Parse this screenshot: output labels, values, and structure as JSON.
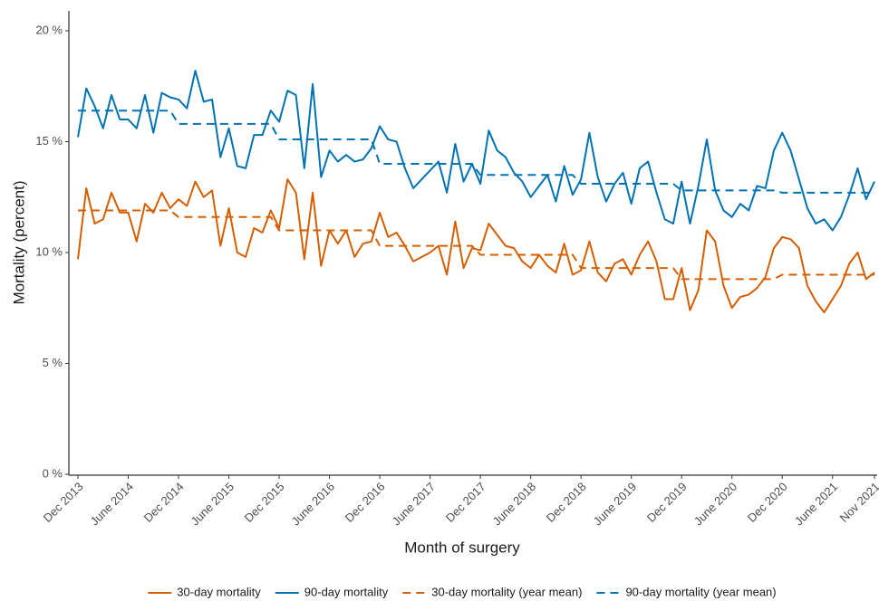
{
  "chart_data": {
    "type": "line",
    "x_label": "Month of surgery",
    "y_label": "Mortality (percent)",
    "categories": [
      "Dec 2013",
      null,
      null,
      null,
      null,
      null,
      "June 2014",
      null,
      null,
      null,
      null,
      null,
      "Dec 2014",
      null,
      null,
      null,
      null,
      null,
      "June 2015",
      null,
      null,
      null,
      null,
      null,
      "Dec 2015",
      null,
      null,
      null,
      null,
      null,
      "June 2016",
      null,
      null,
      null,
      null,
      null,
      "Dec 2016",
      null,
      null,
      null,
      null,
      null,
      "June 2017",
      null,
      null,
      null,
      null,
      null,
      "Dec 2017",
      null,
      null,
      null,
      null,
      null,
      "June 2018",
      null,
      null,
      null,
      null,
      null,
      "Dec 2018",
      null,
      null,
      null,
      null,
      null,
      "June 2019",
      null,
      null,
      null,
      null,
      null,
      "Dec 2019",
      null,
      null,
      null,
      null,
      null,
      "June 2020",
      null,
      null,
      null,
      null,
      null,
      "Dec 2020",
      null,
      null,
      null,
      null,
      null,
      "June 2021",
      null,
      null,
      null,
      null,
      "Nov 2021"
    ],
    "ylim": [
      0,
      20.9
    ],
    "yticks": [
      {
        "value": 0,
        "label": "0 %"
      },
      {
        "value": 5,
        "label": "5 %"
      },
      {
        "value": 10,
        "label": "10 %"
      },
      {
        "value": 15,
        "label": "15 %"
      },
      {
        "value": 20,
        "label": "20 %"
      }
    ],
    "grid": false,
    "legend": "bottom",
    "series": [
      {
        "name": "30-day mortality",
        "color": "#D55E00",
        "dashed": false,
        "values": [
          9.7,
          12.9,
          11.3,
          11.5,
          12.7,
          11.8,
          11.8,
          10.5,
          12.2,
          11.8,
          12.7,
          12.0,
          12.4,
          12.1,
          13.2,
          12.5,
          12.8,
          10.3,
          12.0,
          10.0,
          9.8,
          11.1,
          10.9,
          11.9,
          11.1,
          13.3,
          12.7,
          9.7,
          12.7,
          9.4,
          11.0,
          10.4,
          11.0,
          9.8,
          10.4,
          10.5,
          11.8,
          10.7,
          10.9,
          10.3,
          9.6,
          9.8,
          10.0,
          10.3,
          9.0,
          11.4,
          9.3,
          10.2,
          10.1,
          11.3,
          10.8,
          10.3,
          10.2,
          9.6,
          9.3,
          9.9,
          9.4,
          9.1,
          10.4,
          9.0,
          9.2,
          10.5,
          9.1,
          8.7,
          9.5,
          9.7,
          9.0,
          9.9,
          10.5,
          9.6,
          7.9,
          7.9,
          9.3,
          7.4,
          8.3,
          11.0,
          10.5,
          8.5,
          7.5,
          8.0,
          8.1,
          8.4,
          8.9,
          10.2,
          10.7,
          10.6,
          10.2,
          8.5,
          7.8,
          7.3,
          7.9,
          8.5,
          9.5,
          10.0,
          8.8,
          9.1
        ]
      },
      {
        "name": "90-day mortality",
        "color": "#0072B2",
        "dashed": false,
        "values": [
          15.2,
          17.4,
          16.6,
          15.6,
          17.1,
          16.0,
          16.0,
          15.6,
          17.1,
          15.4,
          17.2,
          17.0,
          16.9,
          16.5,
          18.2,
          16.8,
          16.9,
          14.3,
          15.6,
          13.9,
          13.8,
          15.3,
          15.3,
          16.4,
          15.9,
          17.3,
          17.1,
          13.8,
          17.6,
          13.4,
          14.6,
          14.1,
          14.4,
          14.1,
          14.2,
          14.7,
          15.7,
          15.1,
          15.0,
          13.8,
          12.9,
          13.3,
          13.7,
          14.1,
          12.7,
          14.9,
          13.2,
          14.0,
          13.1,
          15.5,
          14.6,
          14.3,
          13.6,
          13.2,
          12.5,
          13.0,
          13.5,
          12.3,
          13.9,
          12.6,
          13.3,
          15.4,
          13.4,
          12.3,
          13.1,
          13.6,
          12.2,
          13.8,
          14.1,
          12.7,
          11.5,
          11.3,
          13.2,
          11.3,
          13.0,
          15.1,
          12.8,
          11.9,
          11.6,
          12.2,
          11.9,
          13.0,
          12.9,
          14.6,
          15.4,
          14.6,
          13.3,
          12.0,
          11.3,
          11.5,
          11.0,
          11.6,
          12.6,
          13.8,
          12.4,
          13.2
        ]
      },
      {
        "name": "30-day mortality (year mean)",
        "color": "#D55E00",
        "dashed": true,
        "values": [
          11.9,
          11.9,
          11.9,
          11.9,
          11.9,
          11.9,
          11.9,
          11.9,
          11.9,
          11.9,
          11.9,
          11.9,
          11.6,
          11.6,
          11.6,
          11.6,
          11.6,
          11.6,
          11.6,
          11.6,
          11.6,
          11.6,
          11.6,
          11.6,
          11.0,
          11.0,
          11.0,
          11.0,
          11.0,
          11.0,
          11.0,
          11.0,
          11.0,
          11.0,
          11.0,
          11.0,
          10.3,
          10.3,
          10.3,
          10.3,
          10.3,
          10.3,
          10.3,
          10.3,
          10.3,
          10.3,
          10.3,
          10.3,
          9.9,
          9.9,
          9.9,
          9.9,
          9.9,
          9.9,
          9.9,
          9.9,
          9.9,
          9.9,
          9.9,
          9.9,
          9.3,
          9.3,
          9.3,
          9.3,
          9.3,
          9.3,
          9.3,
          9.3,
          9.3,
          9.3,
          9.3,
          9.3,
          8.8,
          8.8,
          8.8,
          8.8,
          8.8,
          8.8,
          8.8,
          8.8,
          8.8,
          8.8,
          8.8,
          8.8,
          9.0,
          9.0,
          9.0,
          9.0,
          9.0,
          9.0,
          9.0,
          9.0,
          9.0,
          9.0,
          9.0,
          9.0
        ]
      },
      {
        "name": "90-day mortality (year mean)",
        "color": "#0072B2",
        "dashed": true,
        "values": [
          16.4,
          16.4,
          16.4,
          16.4,
          16.4,
          16.4,
          16.4,
          16.4,
          16.4,
          16.4,
          16.4,
          16.4,
          15.8,
          15.8,
          15.8,
          15.8,
          15.8,
          15.8,
          15.8,
          15.8,
          15.8,
          15.8,
          15.8,
          15.8,
          15.1,
          15.1,
          15.1,
          15.1,
          15.1,
          15.1,
          15.1,
          15.1,
          15.1,
          15.1,
          15.1,
          15.1,
          14.0,
          14.0,
          14.0,
          14.0,
          14.0,
          14.0,
          14.0,
          14.0,
          14.0,
          14.0,
          14.0,
          14.0,
          13.5,
          13.5,
          13.5,
          13.5,
          13.5,
          13.5,
          13.5,
          13.5,
          13.5,
          13.5,
          13.5,
          13.5,
          13.1,
          13.1,
          13.1,
          13.1,
          13.1,
          13.1,
          13.1,
          13.1,
          13.1,
          13.1,
          13.1,
          13.1,
          12.8,
          12.8,
          12.8,
          12.8,
          12.8,
          12.8,
          12.8,
          12.8,
          12.8,
          12.8,
          12.8,
          12.8,
          12.7,
          12.7,
          12.7,
          12.7,
          12.7,
          12.7,
          12.7,
          12.7,
          12.7,
          12.7,
          12.7,
          12.7
        ]
      }
    ]
  }
}
